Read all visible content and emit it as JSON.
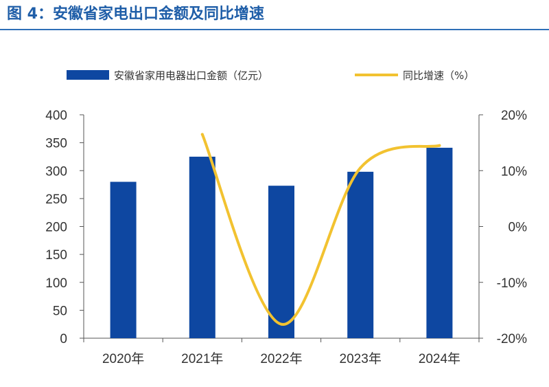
{
  "figure": {
    "title": "图 4：安徽省家电出口金额及同比增速"
  },
  "chart_data": {
    "type": "bar",
    "categories": [
      "2020年",
      "2021年",
      "2022年",
      "2023年",
      "2024年"
    ],
    "series": [
      {
        "name": "安徽省家用电器出口金额（亿元）",
        "kind": "bar",
        "axis": "left",
        "color": "#0e47a1",
        "values": [
          280,
          325,
          273,
          298,
          341
        ]
      },
      {
        "name": "同比增速（%）",
        "kind": "line",
        "axis": "right",
        "color": "#f2c230",
        "values": [
          null,
          16.5,
          -17.5,
          10.5,
          14.5
        ]
      }
    ],
    "y_left": {
      "ylim": [
        0,
        400
      ],
      "ticks": [
        "0",
        "50",
        "100",
        "150",
        "200",
        "250",
        "300",
        "350",
        "400"
      ]
    },
    "y_right": {
      "ylim": [
        -20,
        20
      ],
      "ticks": [
        "-20%",
        "-10%",
        "0%",
        "10%",
        "20%"
      ]
    },
    "grid": false,
    "legend_position": "top"
  }
}
